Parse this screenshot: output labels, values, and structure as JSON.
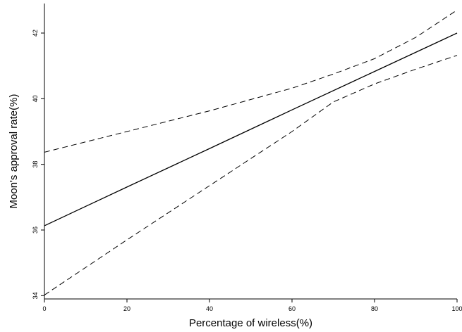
{
  "chart_data": {
    "type": "line",
    "title": "",
    "xlabel": "Percentage of wireless(%)",
    "ylabel": "Moon's approval rate(%)",
    "xlim": [
      0,
      100
    ],
    "ylim": [
      33.9,
      42.9
    ],
    "x_ticks": [
      0,
      20,
      40,
      60,
      80,
      100
    ],
    "y_ticks": [
      34,
      36,
      38,
      40,
      42
    ],
    "x_tick_labels": [
      "0",
      "20",
      "40",
      "60",
      "80",
      "100"
    ],
    "y_tick_labels": [
      "34",
      "36",
      "38",
      "40",
      "42"
    ],
    "grid": false,
    "legend": "none",
    "series": [
      {
        "style": "solid",
        "color": "#000000",
        "x": [
          0,
          20,
          40,
          60,
          80,
          100
        ],
        "y": [
          36.13,
          37.31,
          38.48,
          39.66,
          40.83,
          42.0
        ]
      },
      {
        "style": "dashed",
        "color": "#333333",
        "x": [
          0,
          20,
          40,
          60,
          70,
          80,
          90,
          100
        ],
        "y": [
          38.37,
          39.0,
          39.63,
          40.32,
          40.75,
          41.22,
          41.87,
          42.7
        ]
      },
      {
        "style": "dashed",
        "color": "#333333",
        "x": [
          0,
          20,
          40,
          60,
          70,
          80,
          90,
          100
        ],
        "y": [
          34.02,
          35.7,
          37.35,
          39.0,
          39.9,
          40.45,
          40.9,
          41.32
        ]
      }
    ]
  }
}
